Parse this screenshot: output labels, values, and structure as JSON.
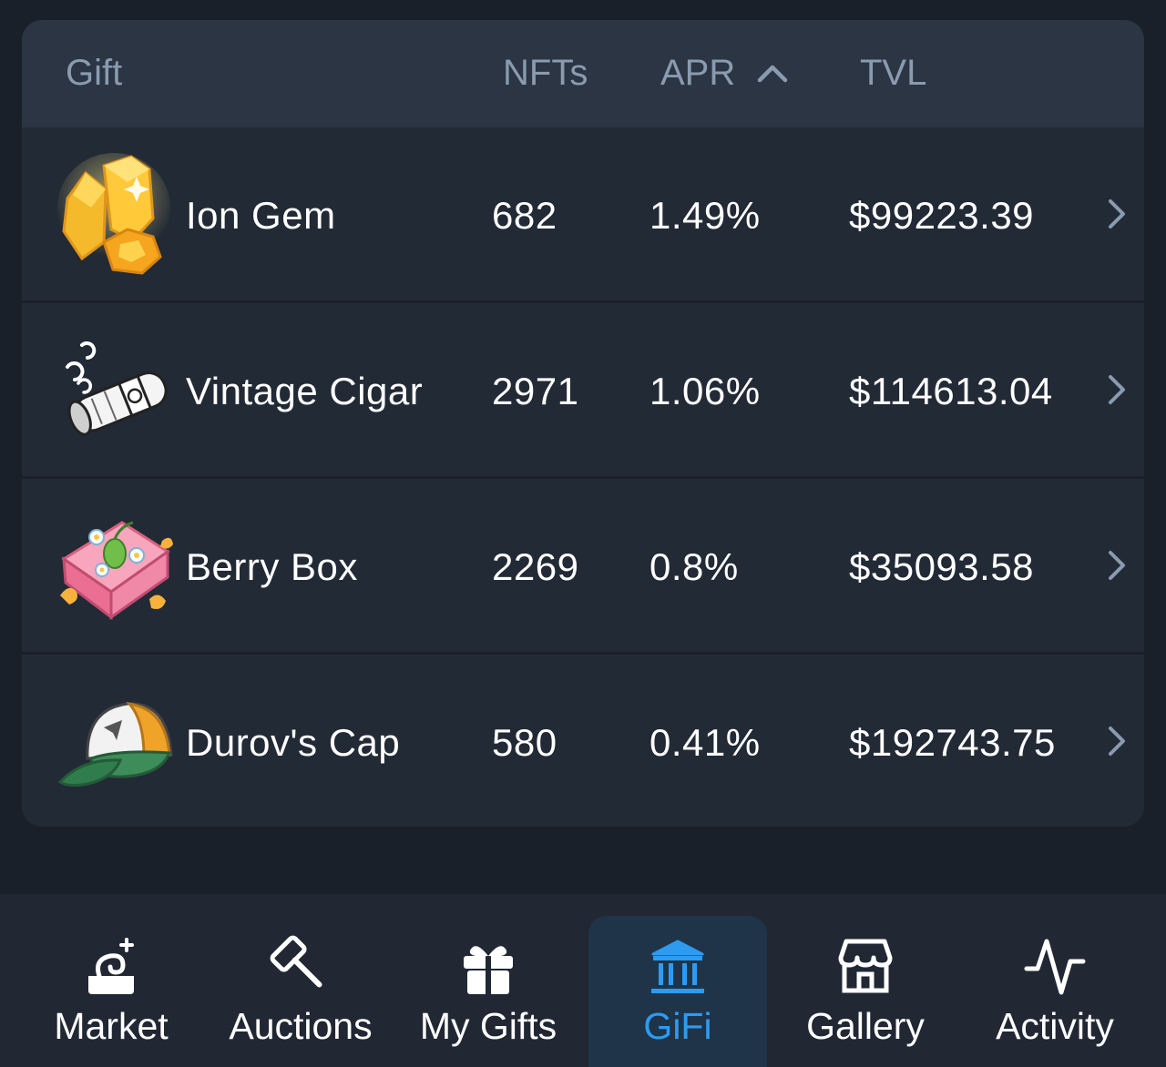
{
  "table": {
    "headers": {
      "gift": "Gift",
      "nfts": "NFTs",
      "apr": "APR",
      "tvl": "TVL"
    },
    "sort": {
      "column": "APR",
      "direction": "descending",
      "icon": "chevron-up-icon"
    },
    "rows": [
      {
        "name": "Ion Gem",
        "nfts": "682",
        "apr": "1.49%",
        "tvl": "$99223.39",
        "icon": "ion-gem-icon"
      },
      {
        "name": "Vintage Cigar",
        "nfts": "2971",
        "apr": "1.06%",
        "tvl": "$114613.04",
        "icon": "vintage-cigar-icon"
      },
      {
        "name": "Berry Box",
        "nfts": "2269",
        "apr": "0.8%",
        "tvl": "$35093.58",
        "icon": "berry-box-icon"
      },
      {
        "name": "Durov's Cap",
        "nfts": "580",
        "apr": "0.41%",
        "tvl": "$192743.75",
        "icon": "durovs-cap-icon"
      }
    ]
  },
  "nav": {
    "active": "GiFi",
    "items": [
      {
        "label": "Market",
        "icon": "market-icon"
      },
      {
        "label": "Auctions",
        "icon": "gavel-icon"
      },
      {
        "label": "My Gifts",
        "icon": "gift-icon"
      },
      {
        "label": "GiFi",
        "icon": "bank-icon"
      },
      {
        "label": "Gallery",
        "icon": "storefront-icon"
      },
      {
        "label": "Activity",
        "icon": "activity-icon"
      }
    ]
  },
  "colors": {
    "background": "#1a2029",
    "card": "#222a35",
    "header": "#2b3543",
    "header_text": "#8a9bb0",
    "text": "#ffffff",
    "accent": "#2e9bf0",
    "active_tab_bg": "#1f3448"
  }
}
